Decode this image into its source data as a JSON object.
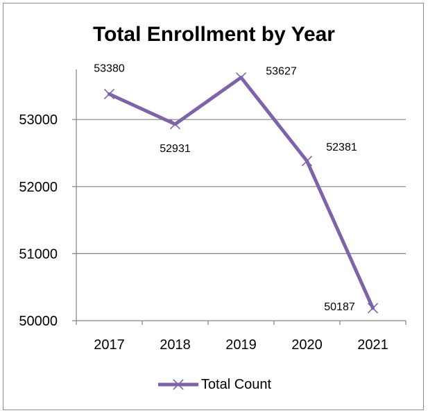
{
  "colors": {
    "series": "#7f63a8",
    "grid": "#808080",
    "axis": "#808080",
    "text": "#000000"
  },
  "chart_data": {
    "type": "line",
    "title": "Total Enrollment by Year",
    "categories": [
      "2017",
      "2018",
      "2019",
      "2020",
      "2021"
    ],
    "series": [
      {
        "name": "Total Count",
        "values": [
          53380,
          52931,
          53627,
          52381,
          50187
        ],
        "marker": "x"
      }
    ],
    "data_labels": [
      "53380",
      "52931",
      "53627",
      "52381",
      "50187"
    ],
    "y_ticks": [
      50000,
      51000,
      52000,
      53000
    ],
    "y_tick_labels": [
      "50000",
      "51000",
      "52000",
      "53000"
    ],
    "ylim": [
      50000,
      54000
    ],
    "xlabel": "",
    "ylabel": "",
    "grid": true,
    "legend_position": "bottom"
  }
}
